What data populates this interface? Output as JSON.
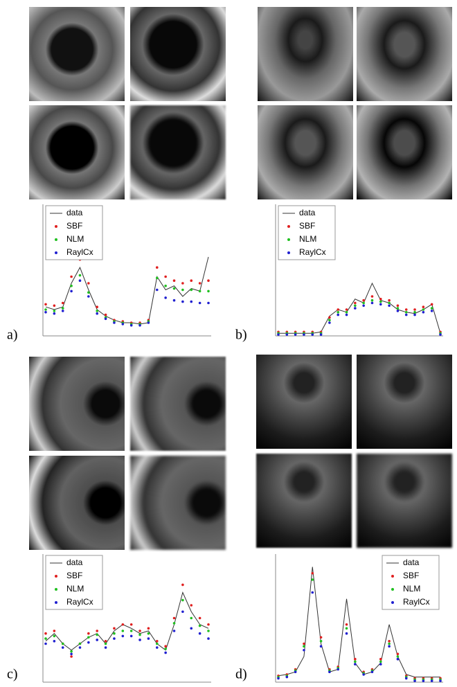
{
  "chart_data": [
    {
      "type": "line",
      "label": "a)",
      "legend": "upper left",
      "ylim": [
        0,
        100
      ],
      "series": [
        {
          "name": "data",
          "color": "#333333",
          "values": [
            22,
            20,
            22,
            40,
            52,
            35,
            20,
            15,
            12,
            10,
            10,
            9,
            10,
            45,
            35,
            38,
            30,
            36,
            34,
            60
          ]
        },
        {
          "name": "SBF",
          "color": "#e02020",
          "values": [
            24,
            23,
            25,
            45,
            58,
            40,
            22,
            16,
            12,
            11,
            10,
            10,
            12,
            52,
            45,
            42,
            40,
            42,
            40,
            42
          ]
        },
        {
          "name": "NLM",
          "color": "#20c020",
          "values": [
            20,
            19,
            21,
            38,
            46,
            33,
            19,
            14,
            11,
            10,
            9,
            9,
            11,
            44,
            38,
            36,
            35,
            35,
            34,
            34
          ]
        },
        {
          "name": "RaylCx",
          "color": "#2020d0",
          "values": [
            18,
            17,
            19,
            34,
            42,
            30,
            17,
            13,
            10,
            9,
            8,
            8,
            10,
            35,
            29,
            27,
            26,
            26,
            25,
            25
          ]
        }
      ]
    },
    {
      "type": "line",
      "label": "b)",
      "legend": "upper left",
      "ylim": [
        0,
        100
      ],
      "series": [
        {
          "name": "data",
          "color": "#333333",
          "values": [
            2,
            2,
            2,
            2,
            2,
            3,
            15,
            20,
            18,
            28,
            25,
            40,
            27,
            25,
            20,
            18,
            17,
            20,
            24,
            2
          ]
        },
        {
          "name": "SBF",
          "color": "#e02020",
          "values": [
            3,
            3,
            3,
            3,
            3,
            3,
            14,
            20,
            20,
            25,
            27,
            30,
            28,
            27,
            23,
            20,
            20,
            22,
            24,
            3
          ]
        },
        {
          "name": "NLM",
          "color": "#20c020",
          "values": [
            2,
            2,
            2,
            2,
            2,
            2,
            12,
            18,
            18,
            23,
            25,
            27,
            26,
            25,
            21,
            18,
            18,
            20,
            21,
            2
          ]
        },
        {
          "name": "RaylCx",
          "color": "#2020d0",
          "values": [
            1,
            1,
            1,
            1,
            1,
            1,
            10,
            16,
            16,
            21,
            23,
            25,
            24,
            23,
            19,
            16,
            16,
            18,
            19,
            1
          ]
        }
      ]
    },
    {
      "type": "line",
      "label": "c)",
      "legend": "upper left",
      "ylim": [
        0,
        100
      ],
      "series": [
        {
          "name": "data",
          "color": "#333333",
          "values": [
            32,
            38,
            30,
            25,
            30,
            35,
            38,
            30,
            40,
            45,
            42,
            38,
            40,
            30,
            25,
            45,
            70,
            55,
            45,
            42
          ]
        },
        {
          "name": "SBF",
          "color": "#e02020",
          "values": [
            38,
            40,
            30,
            20,
            30,
            38,
            40,
            32,
            42,
            45,
            45,
            40,
            42,
            32,
            28,
            50,
            76,
            60,
            50,
            45
          ]
        },
        {
          "name": "NLM",
          "color": "#20c020",
          "values": [
            34,
            36,
            30,
            24,
            30,
            35,
            37,
            30,
            38,
            40,
            40,
            37,
            38,
            30,
            26,
            46,
            64,
            50,
            44,
            40
          ]
        },
        {
          "name": "RaylCx",
          "color": "#2020d0",
          "values": [
            30,
            32,
            27,
            22,
            27,
            31,
            33,
            27,
            34,
            36,
            36,
            33,
            34,
            27,
            23,
            40,
            55,
            42,
            38,
            34
          ]
        }
      ]
    },
    {
      "type": "line",
      "label": "d)",
      "legend": "upper right",
      "ylim": [
        0,
        100
      ],
      "series": [
        {
          "name": "data",
          "color": "#333333",
          "values": [
            5,
            6,
            8,
            20,
            90,
            30,
            8,
            10,
            65,
            15,
            6,
            8,
            15,
            45,
            20,
            6,
            4,
            4,
            4,
            4
          ]
        },
        {
          "name": "SBF",
          "color": "#e02020",
          "values": [
            5,
            6,
            10,
            30,
            85,
            35,
            10,
            12,
            45,
            18,
            8,
            10,
            18,
            32,
            22,
            5,
            3,
            3,
            3,
            3
          ]
        },
        {
          "name": "NLM",
          "color": "#20c020",
          "values": [
            4,
            5,
            9,
            28,
            80,
            32,
            9,
            11,
            42,
            16,
            7,
            9,
            16,
            30,
            20,
            4,
            2,
            2,
            2,
            2
          ]
        },
        {
          "name": "RaylCx",
          "color": "#2020d0",
          "values": [
            3,
            4,
            8,
            25,
            70,
            28,
            8,
            10,
            38,
            14,
            6,
            8,
            14,
            28,
            18,
            3,
            1,
            1,
            1,
            1
          ]
        }
      ]
    }
  ]
}
